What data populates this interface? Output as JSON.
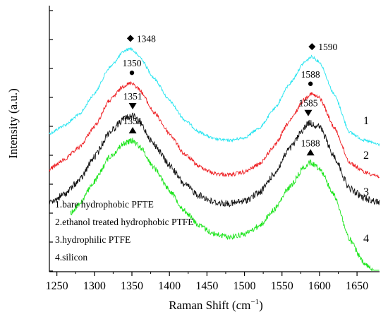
{
  "chart_data": {
    "type": "line",
    "xlabel": "Raman Shift (cm",
    "xlabel_sup": "−1",
    "xlabel_tail": ")",
    "ylabel": "Intensity (a.u.)",
    "xlim": [
      1240,
      1680
    ],
    "x_ticks": [
      1250,
      1300,
      1350,
      1400,
      1450,
      1500,
      1550,
      1600,
      1650
    ],
    "legend": [
      "1.bare hydrophobic PFTE",
      "2.ethanol treated hydrophobic PTFE",
      "3.hydrophilic PTFE",
      "4.silicon"
    ],
    "legend_position": "bottom-left",
    "series": [
      {
        "label": "1",
        "color": "#22e4f0",
        "noise": 0.9,
        "x": [
          1240,
          1260,
          1280,
          1300,
          1320,
          1340,
          1348,
          1360,
          1380,
          1400,
          1420,
          1440,
          1460,
          1480,
          1500,
          1520,
          1540,
          1560,
          1580,
          1590,
          1600,
          1620,
          1640,
          1660,
          1680
        ],
        "y": [
          3.3,
          3.6,
          4.0,
          4.75,
          5.7,
          6.3,
          6.4,
          6.1,
          5.3,
          4.5,
          3.8,
          3.35,
          3.1,
          3.05,
          3.15,
          3.5,
          4.2,
          5.1,
          5.9,
          6.1,
          5.9,
          4.7,
          3.35,
          3.05,
          2.9
        ]
      },
      {
        "label": "2",
        "color": "#ee1f23",
        "noise": 1.3,
        "x": [
          1240,
          1260,
          1280,
          1300,
          1320,
          1340,
          1350,
          1360,
          1380,
          1400,
          1420,
          1440,
          1460,
          1480,
          1500,
          1520,
          1540,
          1560,
          1580,
          1588,
          1600,
          1620,
          1640,
          1660,
          1680
        ],
        "y": [
          2.0,
          2.35,
          2.8,
          3.55,
          4.5,
          5.05,
          5.15,
          4.9,
          4.05,
          3.3,
          2.55,
          2.1,
          1.85,
          1.8,
          1.9,
          2.2,
          2.85,
          3.75,
          4.55,
          4.75,
          4.6,
          3.5,
          2.25,
          1.9,
          1.75
        ]
      },
      {
        "label": "3",
        "color": "#111111",
        "noise": 2.2,
        "x": [
          1240,
          1260,
          1280,
          1300,
          1320,
          1340,
          1351,
          1360,
          1380,
          1400,
          1420,
          1440,
          1460,
          1480,
          1500,
          1520,
          1540,
          1560,
          1580,
          1585,
          1600,
          1620,
          1640,
          1660,
          1680
        ],
        "y": [
          0.75,
          1.1,
          1.6,
          2.45,
          3.35,
          3.85,
          3.95,
          3.7,
          2.9,
          2.15,
          1.45,
          1.05,
          0.8,
          0.75,
          0.85,
          1.15,
          1.85,
          2.75,
          3.5,
          3.7,
          3.55,
          2.45,
          1.3,
          0.95,
          0.8
        ]
      },
      {
        "label": "4",
        "color": "#1ee51e",
        "noise": 1.8,
        "x": [
          1268,
          1280,
          1300,
          1320,
          1340,
          1351,
          1360,
          1380,
          1400,
          1420,
          1440,
          1460,
          1480,
          1500,
          1520,
          1540,
          1560,
          1580,
          1588,
          1600,
          1620,
          1640,
          1660,
          1680
        ],
        "y": [
          0.4,
          0.75,
          1.55,
          2.45,
          2.95,
          3.05,
          2.85,
          2.05,
          1.25,
          0.5,
          -0.05,
          -0.35,
          -0.45,
          -0.35,
          -0.05,
          0.55,
          1.35,
          2.1,
          2.25,
          2.05,
          1.05,
          -0.55,
          -1.45,
          -1.9
        ]
      }
    ],
    "annotations": [
      {
        "x": 1348,
        "y": 6.4,
        "text": "1348",
        "marker": "diamond",
        "series": 0
      },
      {
        "x": 1590,
        "y": 6.1,
        "text": "1590",
        "marker": "diamond",
        "series": 0
      },
      {
        "x": 1350,
        "y": 5.15,
        "text": "1350",
        "marker": "circle",
        "series": 1
      },
      {
        "x": 1588,
        "y": 4.75,
        "text": "1588",
        "marker": "circle",
        "series": 1
      },
      {
        "x": 1351,
        "y": 3.95,
        "text": "1351",
        "marker": "triangle-down",
        "series": 2
      },
      {
        "x": 1585,
        "y": 3.7,
        "text": "1585",
        "marker": "triangle-down",
        "series": 2
      },
      {
        "x": 1351,
        "y": 3.05,
        "text": "1351",
        "marker": "triangle-up",
        "series": 3
      },
      {
        "x": 1588,
        "y": 2.25,
        "text": "1588",
        "marker": "triangle-up",
        "series": 3
      }
    ]
  }
}
